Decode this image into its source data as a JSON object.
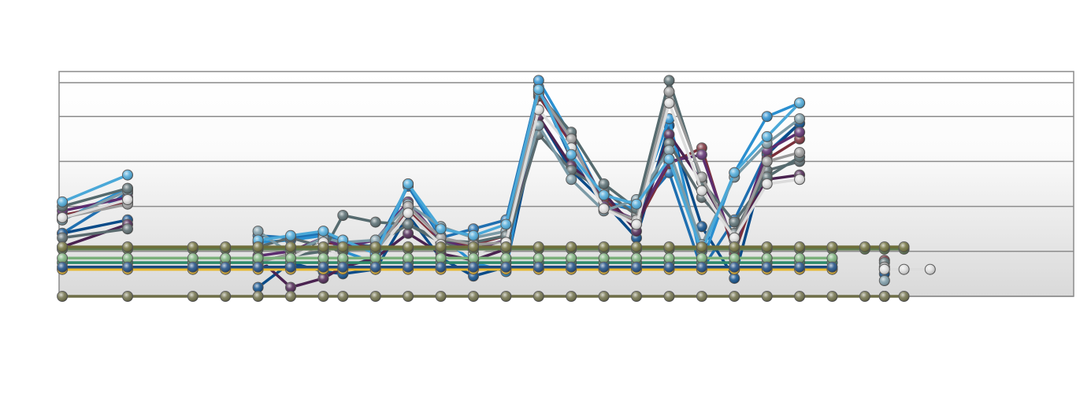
{
  "chart_data": {
    "type": "line",
    "title": "",
    "xlabel": "",
    "ylabel": "",
    "x": [
      0,
      10,
      20,
      25,
      30,
      35,
      40,
      43,
      48,
      53,
      58,
      63,
      68,
      73,
      78,
      83,
      88,
      93,
      98,
      103,
      108,
      113,
      118,
      123,
      126,
      129,
      133,
      137,
      140,
      144,
      150
    ],
    "xlim": [
      -0.5,
      155
    ],
    "ylim": [
      0,
      10
    ],
    "gridlines": [
      0,
      2,
      4,
      6,
      8,
      9.5
    ],
    "grid": true,
    "legend": "none",
    "series": [
      {
        "color": "#1f6fb0",
        "values": [
          2.8,
          4.6,
          null,
          null,
          2.7,
          2.6,
          2.8,
          2.4,
          2.2,
          4.9,
          2.6,
          3.0,
          3.4,
          9.3,
          6.1,
          4.2,
          3.8,
          5.5,
          1.2,
          3.4,
          6.4,
          7.7,
          null,
          null,
          1.2,
          null,
          null,
          null,
          null,
          null,
          null
        ]
      },
      {
        "color": "#0a4b88",
        "values": [
          2.8,
          3.4,
          null,
          null,
          0.4,
          1.5,
          1.1,
          1.0,
          1.2,
          3.6,
          1.7,
          0.9,
          1.3,
          8.0,
          5.6,
          4.2,
          2.6,
          7.6,
          3.1,
          0.8,
          6.3,
          7.7,
          null,
          null,
          1.0,
          null,
          null,
          null,
          null,
          null,
          null
        ]
      },
      {
        "color": "#2a8fd0",
        "values": [
          3.4,
          4.8,
          null,
          null,
          2.4,
          2.5,
          2.7,
          2.0,
          1.5,
          5.0,
          2.7,
          1.5,
          1.1,
          9.6,
          7.1,
          4.2,
          3.9,
          7.9,
          1.5,
          5.5,
          8.0,
          8.6,
          null,
          null,
          0.0,
          null,
          null,
          null,
          null,
          null,
          null
        ]
      },
      {
        "color": "#7a2f3a",
        "values": [
          3.6,
          4.2,
          null,
          null,
          1.6,
          1.8,
          2.4,
          2.3,
          2.2,
          3.8,
          2.4,
          2.3,
          2.7,
          8.9,
          6.8,
          4.3,
          3.2,
          5.9,
          6.6,
          1.9,
          6.1,
          7.0,
          null,
          null,
          1.6,
          null,
          null,
          null,
          null,
          null,
          null
        ]
      },
      {
        "color": "#5c2d6f",
        "values": [
          3.8,
          4.4,
          null,
          null,
          1.8,
          2.0,
          2.6,
          2.2,
          2.5,
          4.2,
          2.5,
          2.1,
          2.5,
          9.2,
          6.9,
          4.0,
          3.4,
          6.0,
          6.3,
          2.2,
          6.5,
          7.3,
          null,
          null,
          0.0,
          null,
          null,
          null,
          null,
          null,
          null
        ]
      },
      {
        "color": "#4a2350",
        "values": [
          2.2,
          3.2,
          null,
          null,
          1.7,
          0.4,
          0.8,
          1.3,
          1.7,
          2.8,
          1.9,
          1.6,
          2.1,
          8.0,
          5.8,
          4.6,
          2.9,
          7.2,
          5.1,
          2.6,
          5.2,
          5.4,
          null,
          null,
          0.0,
          null,
          null,
          null,
          null,
          null,
          null
        ]
      },
      {
        "color": "#5a6a6e",
        "values": [
          2.6,
          3.0,
          null,
          null,
          2.2,
          2.6,
          2.2,
          2.0,
          2.3,
          3.2,
          2.4,
          2.0,
          2.3,
          7.2,
          5.6,
          4.7,
          3.6,
          6.8,
          4.4,
          2.8,
          5.6,
          6.0,
          null,
          null,
          0.0,
          null,
          null,
          null,
          null,
          null,
          null
        ]
      },
      {
        "color": "#7b9aa6",
        "values": [
          3.4,
          4.7,
          null,
          null,
          2.9,
          1.9,
          2.6,
          2.4,
          2.5,
          4.1,
          3.1,
          2.6,
          2.9,
          7.6,
          5.2,
          3.8,
          4.3,
          6.5,
          2.3,
          5.3,
          6.8,
          7.9,
          null,
          null,
          0.7,
          null,
          null,
          null,
          null,
          null,
          null
        ]
      },
      {
        "color": "#556a6e",
        "values": [
          4.0,
          4.8,
          null,
          null,
          1.6,
          1.8,
          2.0,
          3.6,
          3.3,
          3.2,
          2.5,
          2.4,
          2.7,
          9.0,
          7.3,
          5.0,
          3.9,
          9.6,
          5.1,
          3.3,
          5.3,
          6.2,
          null,
          null,
          1.5,
          null,
          null,
          null,
          null,
          null,
          null
        ]
      },
      {
        "color": "#9a9a9a",
        "values": [
          3.5,
          4.1,
          null,
          null,
          1.5,
          1.9,
          2.2,
          2.1,
          2.0,
          4.0,
          2.6,
          2.3,
          2.4,
          9.1,
          7.0,
          3.9,
          3.4,
          9.1,
          5.3,
          2.5,
          6.0,
          6.4,
          null,
          null,
          1.3,
          null,
          null,
          null,
          null,
          null,
          null
        ]
      },
      {
        "color": "#dcdcdc",
        "values": [
          3.5,
          4.3,
          null,
          null,
          1.4,
          1.7,
          2.4,
          1.6,
          1.8,
          3.7,
          2.3,
          1.9,
          2.4,
          8.3,
          6.6,
          3.9,
          3.2,
          8.6,
          4.7,
          2.6,
          5.0,
          5.2,
          null,
          null,
          1.2,
          1.2,
          1.2,
          null,
          null,
          null,
          null
        ]
      },
      {
        "color": "#4aa8d8",
        "values": [
          4.2,
          5.4,
          null,
          null,
          2.5,
          2.7,
          2.9,
          2.5,
          1.9,
          5.0,
          3.0,
          2.7,
          3.2,
          9.2,
          6.3,
          4.5,
          4.1,
          6.1,
          2.0,
          5.5,
          7.1,
          8.6,
          null,
          null,
          0.0,
          null,
          null,
          null,
          null,
          null,
          null
        ]
      },
      {
        "color": "#5f7a4e",
        "values": [
          2.1,
          2.1,
          2.1,
          2.1,
          2.1,
          2.1,
          2.1,
          2.1,
          2.1,
          2.1,
          2.1,
          2.1,
          2.1,
          2.1,
          2.1,
          2.1,
          2.1,
          2.1,
          2.1,
          2.1,
          2.1,
          2.1,
          2.1,
          2.1,
          2.1,
          2.1,
          null,
          null,
          null,
          null,
          null
        ]
      },
      {
        "color": "#6e6e3a",
        "values": [
          2.2,
          2.2,
          2.2,
          2.2,
          2.2,
          2.2,
          2.2,
          2.2,
          2.2,
          2.2,
          2.2,
          2.2,
          2.2,
          2.2,
          2.2,
          2.2,
          2.2,
          2.2,
          2.2,
          2.2,
          2.2,
          2.2,
          2.2,
          2.2,
          2.2,
          2.2,
          null,
          null,
          null,
          null,
          null
        ]
      },
      {
        "color": "#2e8a6a",
        "values": [
          1.5,
          1.5,
          1.5,
          1.5,
          1.5,
          1.5,
          1.5,
          1.5,
          1.5,
          1.5,
          1.5,
          1.5,
          1.5,
          1.5,
          1.5,
          1.5,
          1.5,
          1.5,
          1.5,
          1.5,
          1.5,
          1.5,
          1.5,
          null,
          null,
          null,
          null,
          null,
          null,
          null,
          null
        ]
      },
      {
        "color": "#7ab07a",
        "values": [
          1.7,
          1.7,
          1.7,
          1.7,
          1.7,
          1.7,
          1.7,
          1.7,
          1.7,
          1.7,
          1.7,
          1.7,
          1.7,
          1.7,
          1.7,
          1.7,
          1.7,
          1.7,
          1.7,
          1.7,
          1.7,
          1.7,
          1.7,
          null,
          null,
          null,
          null,
          null,
          null,
          null,
          null
        ]
      },
      {
        "color": "#e8b830",
        "values": [
          1.2,
          1.2,
          1.2,
          1.2,
          1.2,
          1.2,
          1.2,
          1.2,
          1.2,
          1.2,
          1.2,
          1.2,
          1.2,
          1.2,
          1.2,
          1.2,
          1.2,
          1.2,
          1.2,
          1.2,
          1.2,
          1.2,
          1.2,
          null,
          null,
          null,
          null,
          null,
          null,
          null,
          null
        ]
      },
      {
        "color": "#1a4a80",
        "values": [
          1.3,
          1.3,
          1.3,
          1.3,
          1.3,
          1.3,
          1.3,
          1.3,
          1.3,
          1.3,
          1.3,
          1.3,
          1.3,
          1.3,
          1.3,
          1.3,
          1.3,
          1.3,
          1.3,
          1.3,
          1.3,
          1.3,
          1.3,
          null,
          null,
          null,
          null,
          null,
          null,
          null,
          null
        ]
      },
      {
        "color": "#6e6e48",
        "values": [
          0.0,
          0.0,
          0.0,
          0.0,
          0.0,
          0.0,
          0.0,
          0.0,
          0.0,
          0.0,
          0.0,
          0.0,
          0.0,
          0.0,
          0.0,
          0.0,
          0.0,
          0.0,
          0.0,
          0.0,
          0.0,
          0.0,
          0.0,
          0.0,
          0.0,
          0.0,
          null,
          null,
          null,
          null,
          null
        ]
      }
    ]
  }
}
